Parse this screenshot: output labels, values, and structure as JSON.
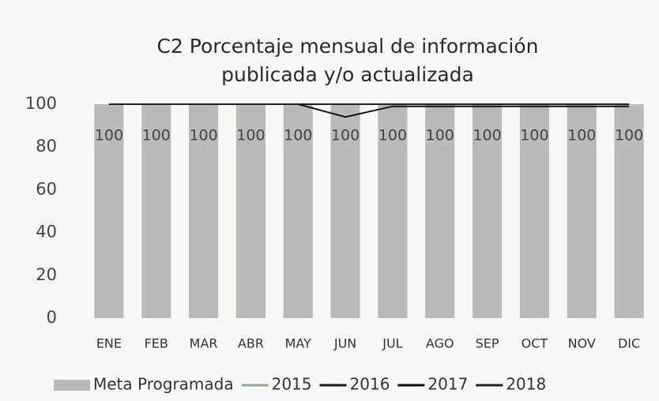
{
  "chart_data": {
    "type": "bar",
    "title": [
      "C2 Porcentaje mensual de información",
      "publicada y/o actualizada"
    ],
    "categories": [
      "ENE",
      "FEB",
      "MAR",
      "ABR",
      "MAY",
      "JUN",
      "JUL",
      "AGO",
      "SEP",
      "OCT",
      "NOV",
      "DIC"
    ],
    "series": [
      {
        "name": "Meta Programada",
        "type": "bar",
        "color": "#b9bbb8",
        "values": [
          100,
          100,
          100,
          100,
          100,
          100,
          100,
          100,
          100,
          100,
          100,
          100
        ]
      },
      {
        "name": "2015",
        "type": "line",
        "color": "#8fa894",
        "values": [
          100,
          100,
          100,
          100,
          100,
          100,
          100,
          100,
          100,
          100,
          100,
          100
        ]
      },
      {
        "name": "2016",
        "type": "line",
        "color": "#1a1a1a",
        "values": [
          100,
          100,
          100,
          100,
          100,
          100,
          100,
          100,
          100,
          100,
          100,
          100
        ]
      },
      {
        "name": "2017",
        "type": "line",
        "color": "#111111",
        "values": [
          100,
          100,
          100,
          100,
          100,
          94,
          99,
          99,
          99,
          99,
          99,
          99
        ]
      },
      {
        "name": "2018",
        "type": "line",
        "color": "#222222",
        "values": [
          100,
          100,
          100,
          100,
          100,
          100,
          100,
          100,
          100,
          100,
          100,
          100
        ]
      }
    ],
    "ylim": [
      0,
      100
    ],
    "yticks": [
      0,
      20,
      40,
      60,
      80,
      100
    ],
    "grid": false,
    "legend": "bottom"
  }
}
